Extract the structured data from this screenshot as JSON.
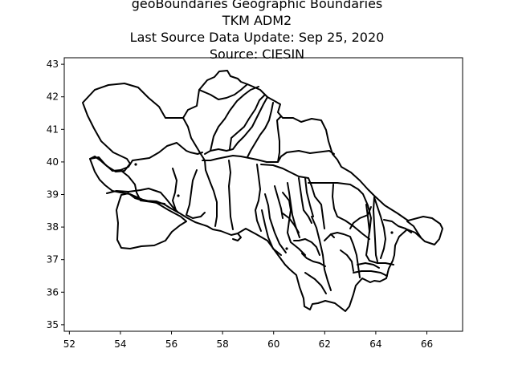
{
  "title": {
    "line1": "geoBoundaries Geographic Boundaries",
    "line2": "TKM ADM2",
    "line3": "Last Source Data Update: Sep 25, 2020",
    "line4": "Source: CIESIN"
  },
  "axes": {
    "x_ticks": [
      "52",
      "54",
      "56",
      "58",
      "60",
      "62",
      "64",
      "66"
    ],
    "y_ticks": [
      "35",
      "36",
      "37",
      "38",
      "39",
      "40",
      "41",
      "42",
      "43"
    ]
  },
  "chart_data": {
    "type": "map",
    "title": "geoBoundaries Geographic Boundaries TKM ADM2",
    "subtitle": "Last Source Data Update: Sep 25, 2020 / Source: CIESIN",
    "xlim": [
      51.8,
      67.4
    ],
    "ylim": [
      34.8,
      43.2
    ],
    "x_ticks": [
      52,
      54,
      56,
      58,
      60,
      62,
      64,
      66
    ],
    "y_ticks": [
      35,
      36,
      37,
      38,
      39,
      40,
      41,
      42,
      43
    ],
    "grid": false
  }
}
